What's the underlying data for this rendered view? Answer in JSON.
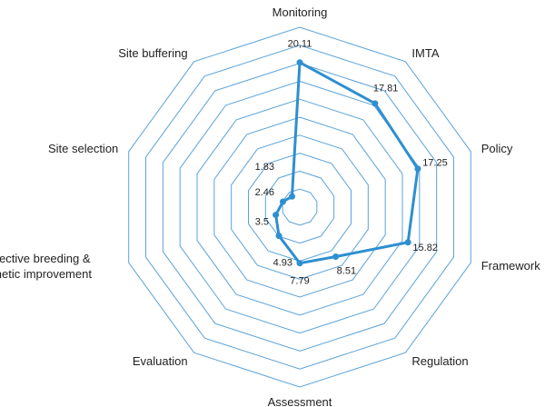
{
  "chart_data": {
    "type": "radar",
    "categories": [
      "Monitoring",
      "IMTA",
      "Policy",
      "Framework",
      "Regulation",
      "Assessment",
      "Evaluation",
      "Selective breeding & genetic improvement",
      "Site selection",
      "Site buffering"
    ],
    "values": [
      20.11,
      17.81,
      17.25,
      15.82,
      8.51,
      7.79,
      4.93,
      3.5,
      2.46,
      1.83
    ],
    "value_labels": [
      "20,11",
      "17.81",
      "17.25",
      "15.82",
      "8.51",
      "7.79",
      "4.93",
      "3.5",
      "2.46",
      "1.83"
    ],
    "color": "#2e8fd0",
    "grid_color": "#5ba3d9",
    "ylim": [
      0,
      25
    ],
    "yticks": [
      2.5,
      5,
      7.5,
      10,
      12.5,
      15,
      17.5,
      20,
      22.5,
      25
    ],
    "grid": true
  }
}
